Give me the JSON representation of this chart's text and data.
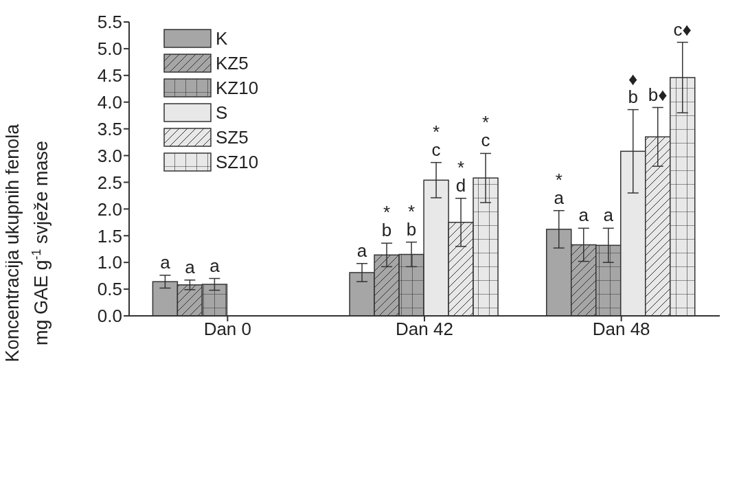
{
  "chart_data": {
    "type": "bar",
    "ylabel": "Koncentracija ukupnih fenola\nmg GAE g$^{-1}$ svježe mase",
    "categories": [
      "Dan 0",
      "Dan 42",
      "Dan 48"
    ],
    "series": [
      {
        "name": "K",
        "color": "#a6a6a6",
        "values": [
          0.64,
          0.81,
          1.62
        ],
        "errors": [
          0.12,
          0.17,
          0.35
        ],
        "value_labels": [
          "a",
          "a",
          "*\na"
        ]
      },
      {
        "name": "KZ5",
        "color": "#a6a6a6",
        "values": [
          0.58,
          1.14,
          1.33
        ],
        "errors": [
          0.09,
          0.22,
          0.31
        ],
        "value_labels": [
          "a",
          "*\nb",
          "a"
        ]
      },
      {
        "name": "KZ10",
        "color": "#a6a6a6",
        "values": [
          0.59,
          1.15,
          1.32
        ],
        "errors": [
          0.11,
          0.23,
          0.32
        ],
        "value_labels": [
          "a",
          "*\nb",
          "a"
        ]
      },
      {
        "name": "S",
        "color": "#e8e8e8",
        "values": [
          null,
          2.54,
          3.08
        ],
        "errors": [
          null,
          0.33,
          0.78
        ],
        "value_labels": [
          null,
          "*\nc",
          "♦\nb"
        ]
      },
      {
        "name": "SZ5",
        "color": "#e8e8e8",
        "values": [
          null,
          1.75,
          3.35
        ],
        "errors": [
          null,
          0.45,
          0.55
        ],
        "value_labels": [
          null,
          "*\nd",
          "b♦"
        ]
      },
      {
        "name": "SZ10",
        "color": "#e8e8e8",
        "values": [
          null,
          2.58,
          4.46
        ],
        "errors": [
          null,
          0.46,
          0.66
        ],
        "value_labels": [
          null,
          "*\nc",
          "c♦"
        ]
      }
    ],
    "ylim": [
      0,
      5.5
    ],
    "yticks": [
      {
        "value": 0,
        "label": "0.0"
      },
      {
        "value": 0.5,
        "label": "0.5"
      },
      {
        "value": 1,
        "label": "1.0"
      },
      {
        "value": 1.5,
        "label": "1.5"
      },
      {
        "value": 2,
        "label": "2.0"
      },
      {
        "value": 2.5,
        "label": "2.5"
      },
      {
        "value": 3,
        "label": "3.0"
      },
      {
        "value": 3.5,
        "label": "3.5"
      },
      {
        "value": 4,
        "label": "4.0"
      },
      {
        "value": 4.5,
        "label": "4.5"
      },
      {
        "value": 5,
        "label": "5.0"
      },
      {
        "value": 5.5,
        "label": "5.5"
      }
    ],
    "legend": "top left",
    "grid": false
  }
}
